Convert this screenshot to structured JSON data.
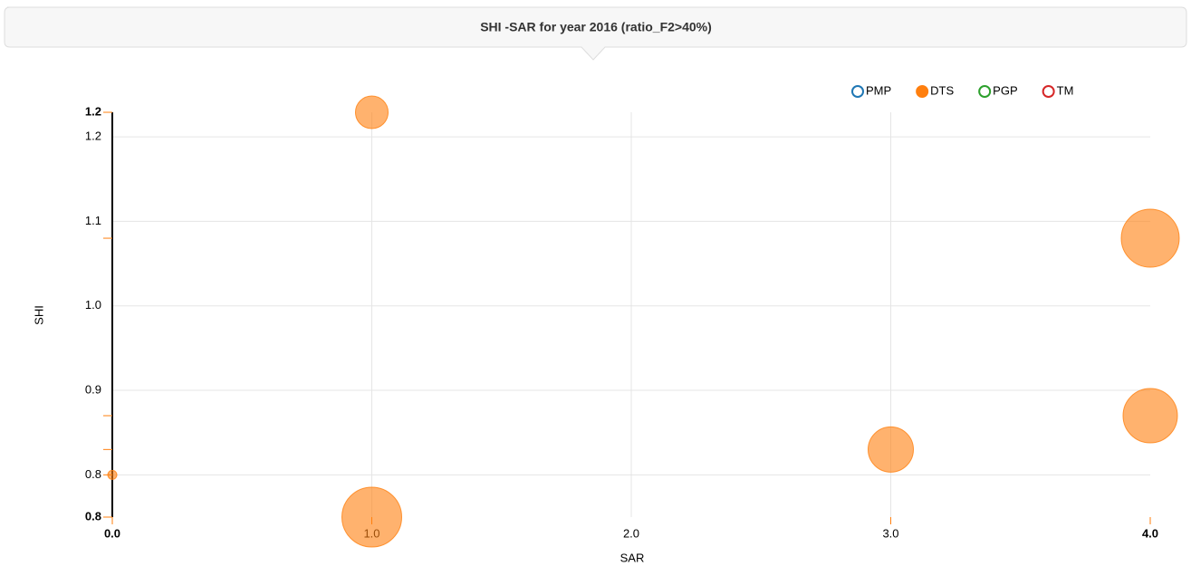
{
  "chart_data": {
    "type": "scatter",
    "title": "SHI -SAR for year 2016 (ratio_F2>40%)",
    "x_label": "SAR",
    "y_label": "SHI",
    "xlim": [
      0,
      4
    ],
    "ylim": [
      0.75,
      1.229
    ],
    "xticks": [
      {
        "value": 0,
        "label": "0.0"
      },
      {
        "value": 1,
        "label": "1.0"
      },
      {
        "value": 2,
        "label": "2.0"
      },
      {
        "value": 3,
        "label": "3.0"
      },
      {
        "value": 4,
        "label": "4.0"
      }
    ],
    "yticks": [
      {
        "value": 0.75,
        "label": "0.8"
      },
      0.8,
      0.9,
      {
        "value": 1,
        "label": "1.0"
      },
      1.1,
      1.2,
      {
        "value": 1.229,
        "label": "1.2"
      }
    ],
    "grid": true,
    "legend": "top-right",
    "series": [
      {
        "name": "PMP",
        "color": "#1f77b4",
        "x": [],
        "values": [],
        "size": []
      },
      {
        "name": "DTS",
        "color": "#ff7f0e",
        "x": [
          1,
          1,
          3,
          4,
          4,
          0
        ],
        "values": [
          1.229,
          0.75,
          0.83,
          1.08,
          0.87,
          0.8
        ],
        "size": [
          18,
          33,
          25,
          32,
          30,
          5
        ]
      },
      {
        "name": "PGP",
        "color": "#2ca02c",
        "x": [],
        "values": [],
        "size": []
      },
      {
        "name": "TM",
        "color": "#d62728",
        "x": [],
        "values": [],
        "size": []
      }
    ]
  }
}
